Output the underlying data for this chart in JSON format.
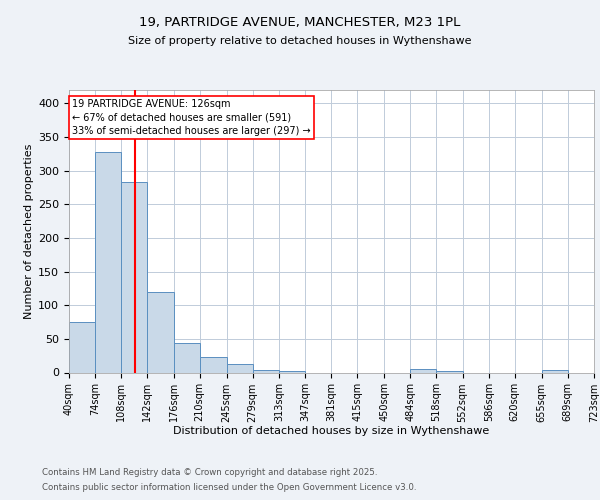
{
  "title1": "19, PARTRIDGE AVENUE, MANCHESTER, M23 1PL",
  "title2": "Size of property relative to detached houses in Wythenshawe",
  "xlabel": "Distribution of detached houses by size in Wythenshawe",
  "ylabel": "Number of detached properties",
  "bin_labels": [
    "40sqm",
    "74sqm",
    "108sqm",
    "142sqm",
    "176sqm",
    "210sqm",
    "245sqm",
    "279sqm",
    "313sqm",
    "347sqm",
    "381sqm",
    "415sqm",
    "450sqm",
    "484sqm",
    "518sqm",
    "552sqm",
    "586sqm",
    "620sqm",
    "655sqm",
    "689sqm",
    "723sqm"
  ],
  "bin_edges": [
    40,
    74,
    108,
    142,
    176,
    210,
    245,
    279,
    313,
    347,
    381,
    415,
    450,
    484,
    518,
    552,
    586,
    620,
    655,
    689,
    723
  ],
  "bar_heights": [
    75,
    328,
    283,
    120,
    44,
    23,
    13,
    4,
    2,
    0,
    0,
    0,
    0,
    5,
    2,
    0,
    0,
    0,
    3,
    0
  ],
  "bar_color": "#c9d9e8",
  "bar_edge_color": "#5a8fc0",
  "vline_x": 126,
  "vline_color": "red",
  "annotation_text": "19 PARTRIDGE AVENUE: 126sqm\n← 67% of detached houses are smaller (591)\n33% of semi-detached houses are larger (297) →",
  "ylim": [
    0,
    420
  ],
  "yticks": [
    0,
    50,
    100,
    150,
    200,
    250,
    300,
    350,
    400
  ],
  "footer1": "Contains HM Land Registry data © Crown copyright and database right 2025.",
  "footer2": "Contains public sector information licensed under the Open Government Licence v3.0.",
  "bg_color": "#eef2f7",
  "plot_bg_color": "white",
  "grid_color": "#c0ccda"
}
